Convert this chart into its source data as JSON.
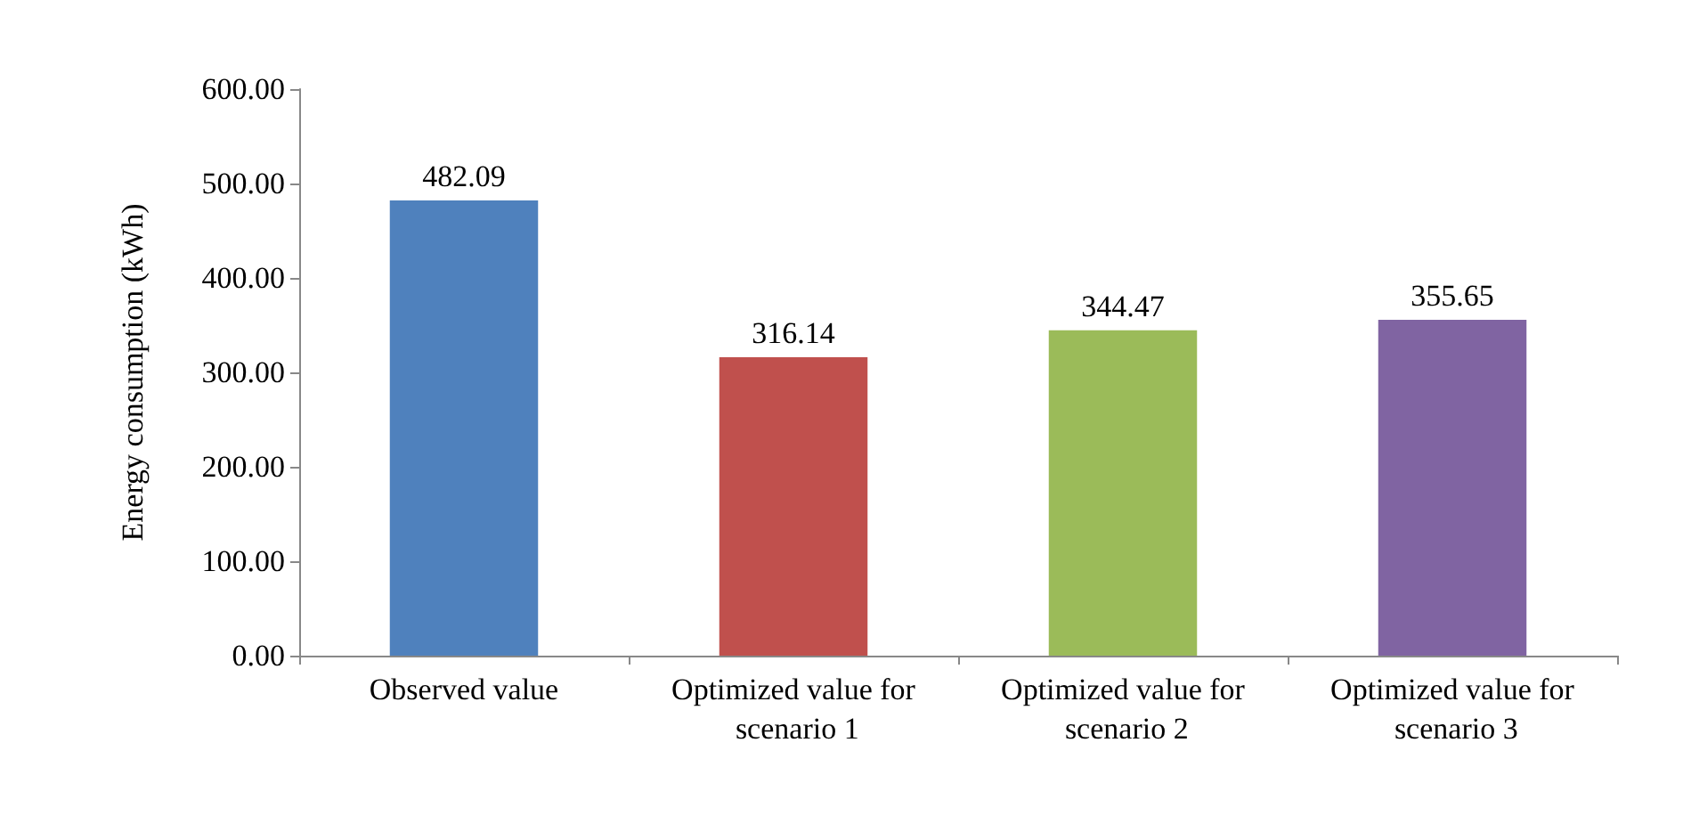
{
  "chart_data": {
    "type": "bar",
    "ylabel": "Energy consumption (kWh)",
    "categories": [
      "Observed value",
      "Optimized value for scenario 1",
      "Optimized value for scenario 2",
      "Optimized value for scenario 3"
    ],
    "values": [
      482.09,
      316.14,
      344.47,
      355.65
    ],
    "colors": [
      "#4f81bd",
      "#c0504d",
      "#9bbb59",
      "#8064a2"
    ],
    "ylim": [
      0,
      600
    ],
    "yticks": [
      {
        "value": 0,
        "label": "0.00"
      },
      {
        "value": 100,
        "label": "100.00"
      },
      {
        "value": 200,
        "label": "200.00"
      },
      {
        "value": 300,
        "label": "300.00"
      },
      {
        "value": 400,
        "label": "400.00"
      },
      {
        "value": 500,
        "label": "500.00"
      },
      {
        "value": 600,
        "label": "600.00"
      }
    ],
    "data_labels": true,
    "grid": false
  }
}
